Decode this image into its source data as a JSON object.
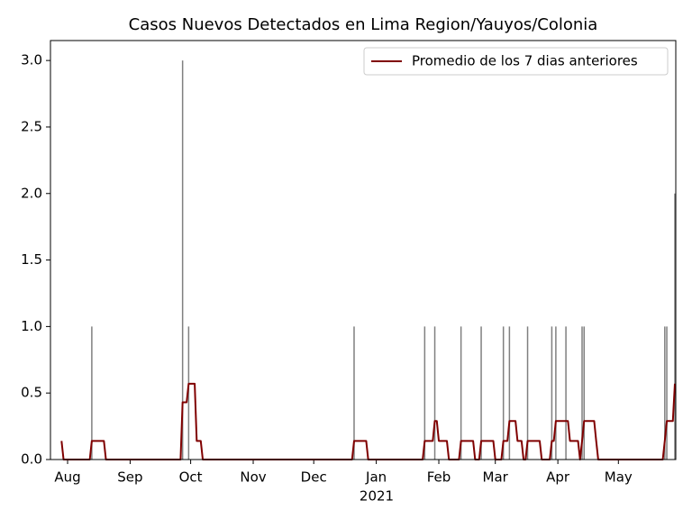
{
  "chart_data": {
    "type": "bar",
    "title": "Casos Nuevos Detectados en Lima Region/Yauyos/Colonia",
    "x_sublabel": "2021",
    "color": "#808080",
    "legend": "upper right",
    "ylim": [
      0,
      3.15
    ],
    "yticks": [
      {
        "value": 0,
        "label": "0.0"
      },
      {
        "value": 0.5,
        "label": "0.5"
      },
      {
        "value": 1,
        "label": "1.0"
      },
      {
        "value": 1.5,
        "label": "1.5"
      },
      {
        "value": 2,
        "label": "2.0"
      },
      {
        "value": 2.5,
        "label": "2.5"
      },
      {
        "value": 3,
        "label": "3.0"
      }
    ],
    "categories": [
      null,
      null,
      null,
      "Aug",
      null,
      null,
      null,
      null,
      null,
      null,
      null,
      null,
      null,
      null,
      null,
      null,
      null,
      null,
      null,
      null,
      null,
      null,
      null,
      null,
      null,
      null,
      null,
      null,
      null,
      null,
      null,
      null,
      null,
      null,
      "Sep",
      null,
      null,
      null,
      null,
      null,
      null,
      null,
      null,
      null,
      null,
      null,
      null,
      null,
      null,
      null,
      null,
      null,
      null,
      null,
      null,
      null,
      null,
      null,
      null,
      null,
      null,
      null,
      null,
      null,
      "Oct",
      null,
      null,
      null,
      null,
      null,
      null,
      null,
      null,
      null,
      null,
      null,
      null,
      null,
      null,
      null,
      null,
      null,
      null,
      null,
      null,
      null,
      null,
      null,
      null,
      null,
      null,
      null,
      null,
      null,
      null,
      "Nov",
      null,
      null,
      null,
      null,
      null,
      null,
      null,
      null,
      null,
      null,
      null,
      null,
      null,
      null,
      null,
      null,
      null,
      null,
      null,
      null,
      null,
      null,
      null,
      null,
      null,
      null,
      null,
      null,
      null,
      "Dec",
      null,
      null,
      null,
      null,
      null,
      null,
      null,
      null,
      null,
      null,
      null,
      null,
      null,
      null,
      null,
      null,
      null,
      null,
      null,
      null,
      null,
      null,
      null,
      null,
      null,
      null,
      null,
      null,
      null,
      null,
      "Jan",
      null,
      null,
      null,
      null,
      null,
      null,
      null,
      null,
      null,
      null,
      null,
      null,
      null,
      null,
      null,
      null,
      null,
      null,
      null,
      null,
      null,
      null,
      null,
      null,
      null,
      null,
      null,
      null,
      null,
      null,
      "Feb",
      null,
      null,
      null,
      null,
      null,
      null,
      null,
      null,
      null,
      null,
      null,
      null,
      null,
      null,
      null,
      null,
      null,
      null,
      null,
      null,
      null,
      null,
      null,
      null,
      null,
      null,
      null,
      "Mar",
      null,
      null,
      null,
      null,
      null,
      null,
      null,
      null,
      null,
      null,
      null,
      null,
      null,
      null,
      null,
      null,
      null,
      null,
      null,
      null,
      null,
      null,
      null,
      null,
      null,
      null,
      null,
      null,
      null,
      null,
      "Apr",
      null,
      null,
      null,
      null,
      null,
      null,
      null,
      null,
      null,
      null,
      null,
      null,
      null,
      null,
      null,
      null,
      null,
      null,
      null,
      null,
      null,
      null,
      null,
      null,
      null,
      null,
      null,
      null,
      null,
      "May",
      null,
      null,
      null,
      null,
      null,
      null,
      null,
      null,
      null,
      null,
      null,
      null,
      null,
      null,
      null,
      null,
      null,
      null,
      null,
      null,
      null,
      null,
      null,
      null,
      null,
      null,
      null,
      null
    ],
    "values": [
      0,
      0,
      0,
      0,
      0,
      0,
      0,
      0,
      0,
      0,
      0,
      0,
      0,
      0,
      0,
      1,
      0,
      0,
      0,
      0,
      0,
      0,
      0,
      0,
      0,
      0,
      0,
      0,
      0,
      0,
      0,
      0,
      0,
      0,
      0,
      0,
      0,
      0,
      0,
      0,
      0,
      0,
      0,
      0,
      0,
      0,
      0,
      0,
      0,
      0,
      0,
      0,
      0,
      0,
      0,
      0,
      0,
      0,
      0,
      0,
      3,
      0,
      0,
      1,
      0,
      0,
      0,
      0,
      0,
      0,
      0,
      0,
      0,
      0,
      0,
      0,
      0,
      0,
      0,
      0,
      0,
      0,
      0,
      0,
      0,
      0,
      0,
      0,
      0,
      0,
      0,
      0,
      0,
      0,
      0,
      0,
      0,
      0,
      0,
      0,
      0,
      0,
      0,
      0,
      0,
      0,
      0,
      0,
      0,
      0,
      0,
      0,
      0,
      0,
      0,
      0,
      0,
      0,
      0,
      0,
      0,
      0,
      0,
      0,
      0,
      0,
      0,
      0,
      0,
      0,
      0,
      0,
      0,
      0,
      0,
      0,
      0,
      0,
      0,
      0,
      0,
      0,
      0,
      0,
      0,
      1,
      0,
      0,
      0,
      0,
      0,
      0,
      0,
      0,
      0,
      0,
      0,
      0,
      0,
      0,
      0,
      0,
      0,
      0,
      0,
      0,
      0,
      0,
      0,
      0,
      0,
      0,
      0,
      0,
      0,
      0,
      0,
      0,
      0,
      0,
      1,
      0,
      0,
      0,
      0,
      1,
      0,
      0,
      0,
      0,
      0,
      0,
      0,
      0,
      0,
      0,
      0,
      0,
      1,
      0,
      0,
      0,
      0,
      0,
      0,
      0,
      0,
      0,
      1,
      0,
      0,
      0,
      0,
      0,
      0,
      0,
      0,
      0,
      0,
      1,
      0,
      0,
      1,
      0,
      0,
      0,
      0,
      0,
      0,
      0,
      0,
      1,
      0,
      0,
      0,
      0,
      0,
      0,
      0,
      0,
      0,
      0,
      0,
      1,
      0,
      1,
      0,
      0,
      0,
      0,
      1,
      0,
      0,
      0,
      0,
      0,
      0,
      0,
      1,
      1,
      0,
      0,
      0,
      0,
      0,
      0,
      0,
      0,
      0,
      0,
      0,
      0,
      0,
      0,
      0,
      0,
      0,
      0,
      0,
      0,
      0,
      0,
      0,
      0,
      0,
      0,
      0,
      0,
      0,
      0,
      0,
      0,
      0,
      0,
      0,
      0,
      0,
      0,
      0,
      1,
      1,
      0,
      0,
      0,
      2
    ],
    "series": [
      {
        "name": "Promedio de los 7 dias anteriores",
        "color": "#800000",
        "values": [
          0.14,
          0,
          0,
          0,
          0,
          0,
          0,
          0,
          0,
          0,
          0,
          0,
          0,
          0,
          0,
          0.14,
          0.14,
          0.14,
          0.14,
          0.14,
          0.14,
          0.14,
          0,
          0,
          0,
          0,
          0,
          0,
          0,
          0,
          0,
          0,
          0,
          0,
          0,
          0,
          0,
          0,
          0,
          0,
          0,
          0,
          0,
          0,
          0,
          0,
          0,
          0,
          0,
          0,
          0,
          0,
          0,
          0,
          0,
          0,
          0,
          0,
          0,
          0,
          0.43,
          0.43,
          0.43,
          0.57,
          0.57,
          0.57,
          0.57,
          0.14,
          0.14,
          0.14,
          0,
          0,
          0,
          0,
          0,
          0,
          0,
          0,
          0,
          0,
          0,
          0,
          0,
          0,
          0,
          0,
          0,
          0,
          0,
          0,
          0,
          0,
          0,
          0,
          0,
          0,
          0,
          0,
          0,
          0,
          0,
          0,
          0,
          0,
          0,
          0,
          0,
          0,
          0,
          0,
          0,
          0,
          0,
          0,
          0,
          0,
          0,
          0,
          0,
          0,
          0,
          0,
          0,
          0,
          0,
          0,
          0,
          0,
          0,
          0,
          0,
          0,
          0,
          0,
          0,
          0,
          0,
          0,
          0,
          0,
          0,
          0,
          0,
          0,
          0,
          0.14,
          0.14,
          0.14,
          0.14,
          0.14,
          0.14,
          0.14,
          0,
          0,
          0,
          0,
          0,
          0,
          0,
          0,
          0,
          0,
          0,
          0,
          0,
          0,
          0,
          0,
          0,
          0,
          0,
          0,
          0,
          0,
          0,
          0,
          0,
          0,
          0,
          0,
          0.14,
          0.14,
          0.14,
          0.14,
          0.14,
          0.29,
          0.29,
          0.14,
          0.14,
          0.14,
          0.14,
          0.14,
          0,
          0,
          0,
          0,
          0,
          0,
          0.14,
          0.14,
          0.14,
          0.14,
          0.14,
          0.14,
          0.14,
          0,
          0,
          0,
          0.14,
          0.14,
          0.14,
          0.14,
          0.14,
          0.14,
          0.14,
          0,
          0,
          0,
          0,
          0.14,
          0.14,
          0.14,
          0.29,
          0.29,
          0.29,
          0.29,
          0.14,
          0.14,
          0.14,
          0,
          0,
          0.14,
          0.14,
          0.14,
          0.14,
          0.14,
          0.14,
          0.14,
          0,
          0,
          0,
          0,
          0,
          0.14,
          0.14,
          0.29,
          0.29,
          0.29,
          0.29,
          0.29,
          0.29,
          0.29,
          0.14,
          0.14,
          0.14,
          0.14,
          0.14,
          0,
          0.14,
          0.29,
          0.29,
          0.29,
          0.29,
          0.29,
          0.29,
          0.14,
          0,
          0,
          0,
          0,
          0,
          0,
          0,
          0,
          0,
          0,
          0,
          0,
          0,
          0,
          0,
          0,
          0,
          0,
          0,
          0,
          0,
          0,
          0,
          0,
          0,
          0,
          0,
          0,
          0,
          0,
          0,
          0,
          0,
          0.14,
          0.29,
          0.29,
          0.29,
          0.29,
          0.57
        ]
      }
    ]
  }
}
